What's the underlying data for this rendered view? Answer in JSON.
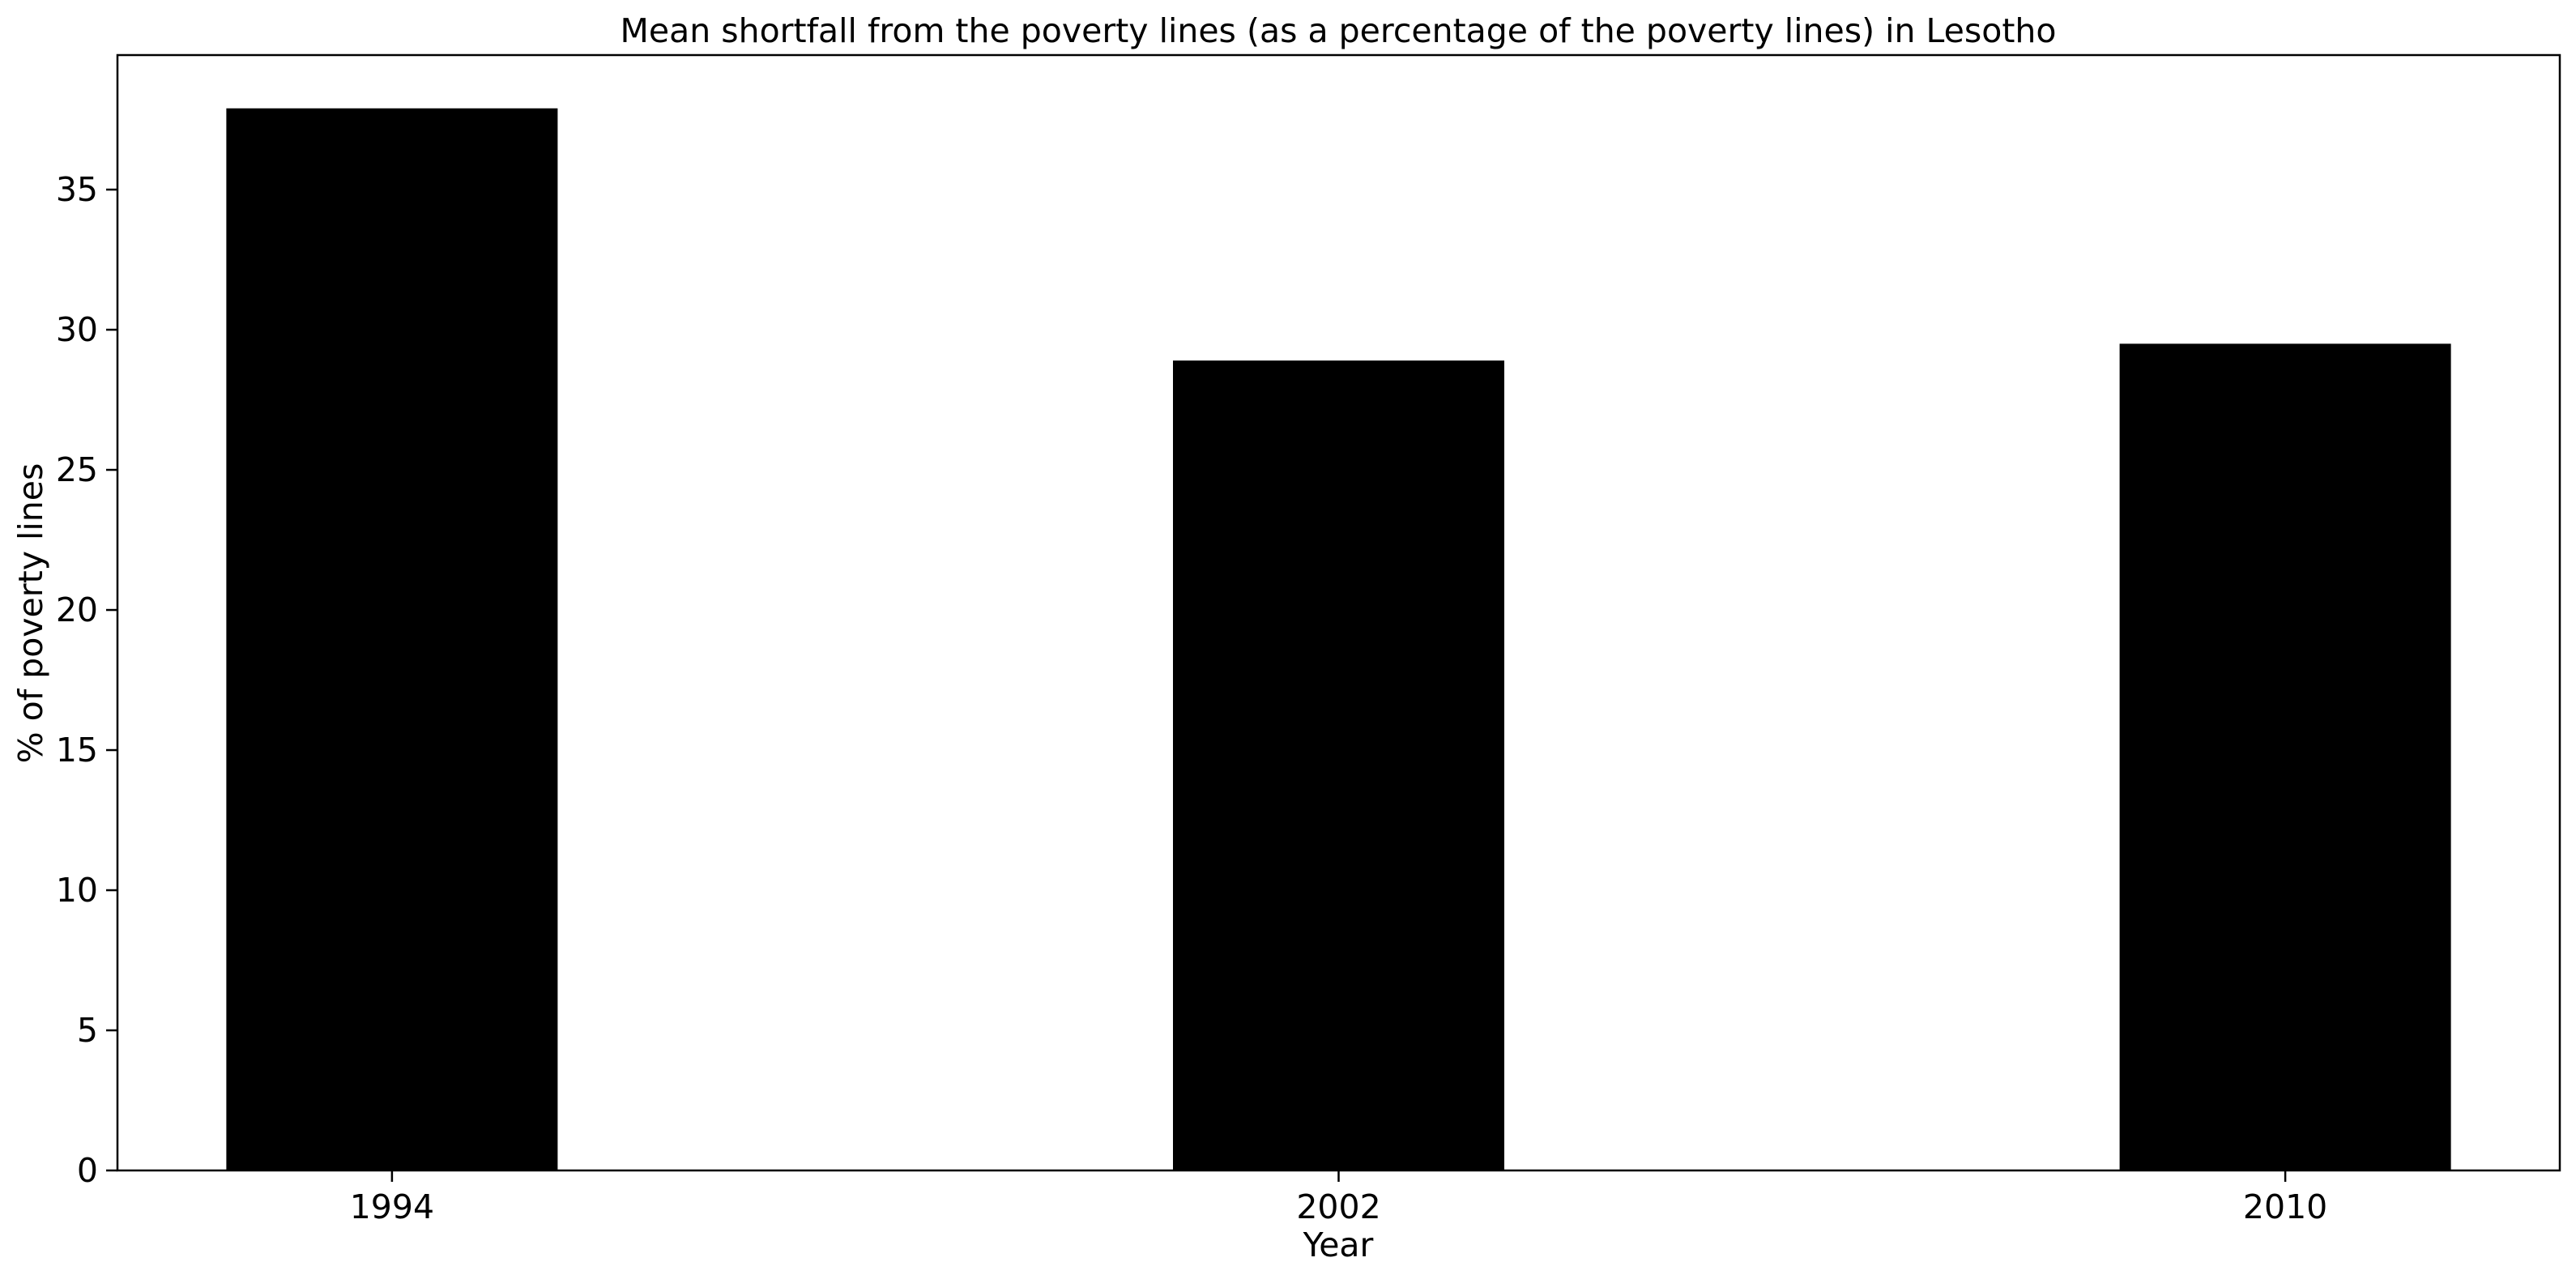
{
  "chart_data": {
    "type": "bar",
    "title": "Mean shortfall from the poverty lines (as a percentage of the poverty lines) in Lesotho",
    "xlabel": "Year",
    "ylabel": "% of poverty lines",
    "categories": [
      "1994",
      "2002",
      "2010"
    ],
    "values": [
      37.9,
      28.9,
      29.5
    ],
    "ylim": [
      0,
      39.8
    ],
    "yticks": [
      0,
      5,
      10,
      15,
      20,
      25,
      30,
      35
    ],
    "grid": false,
    "legend": "none",
    "bar_color": "#000000"
  }
}
